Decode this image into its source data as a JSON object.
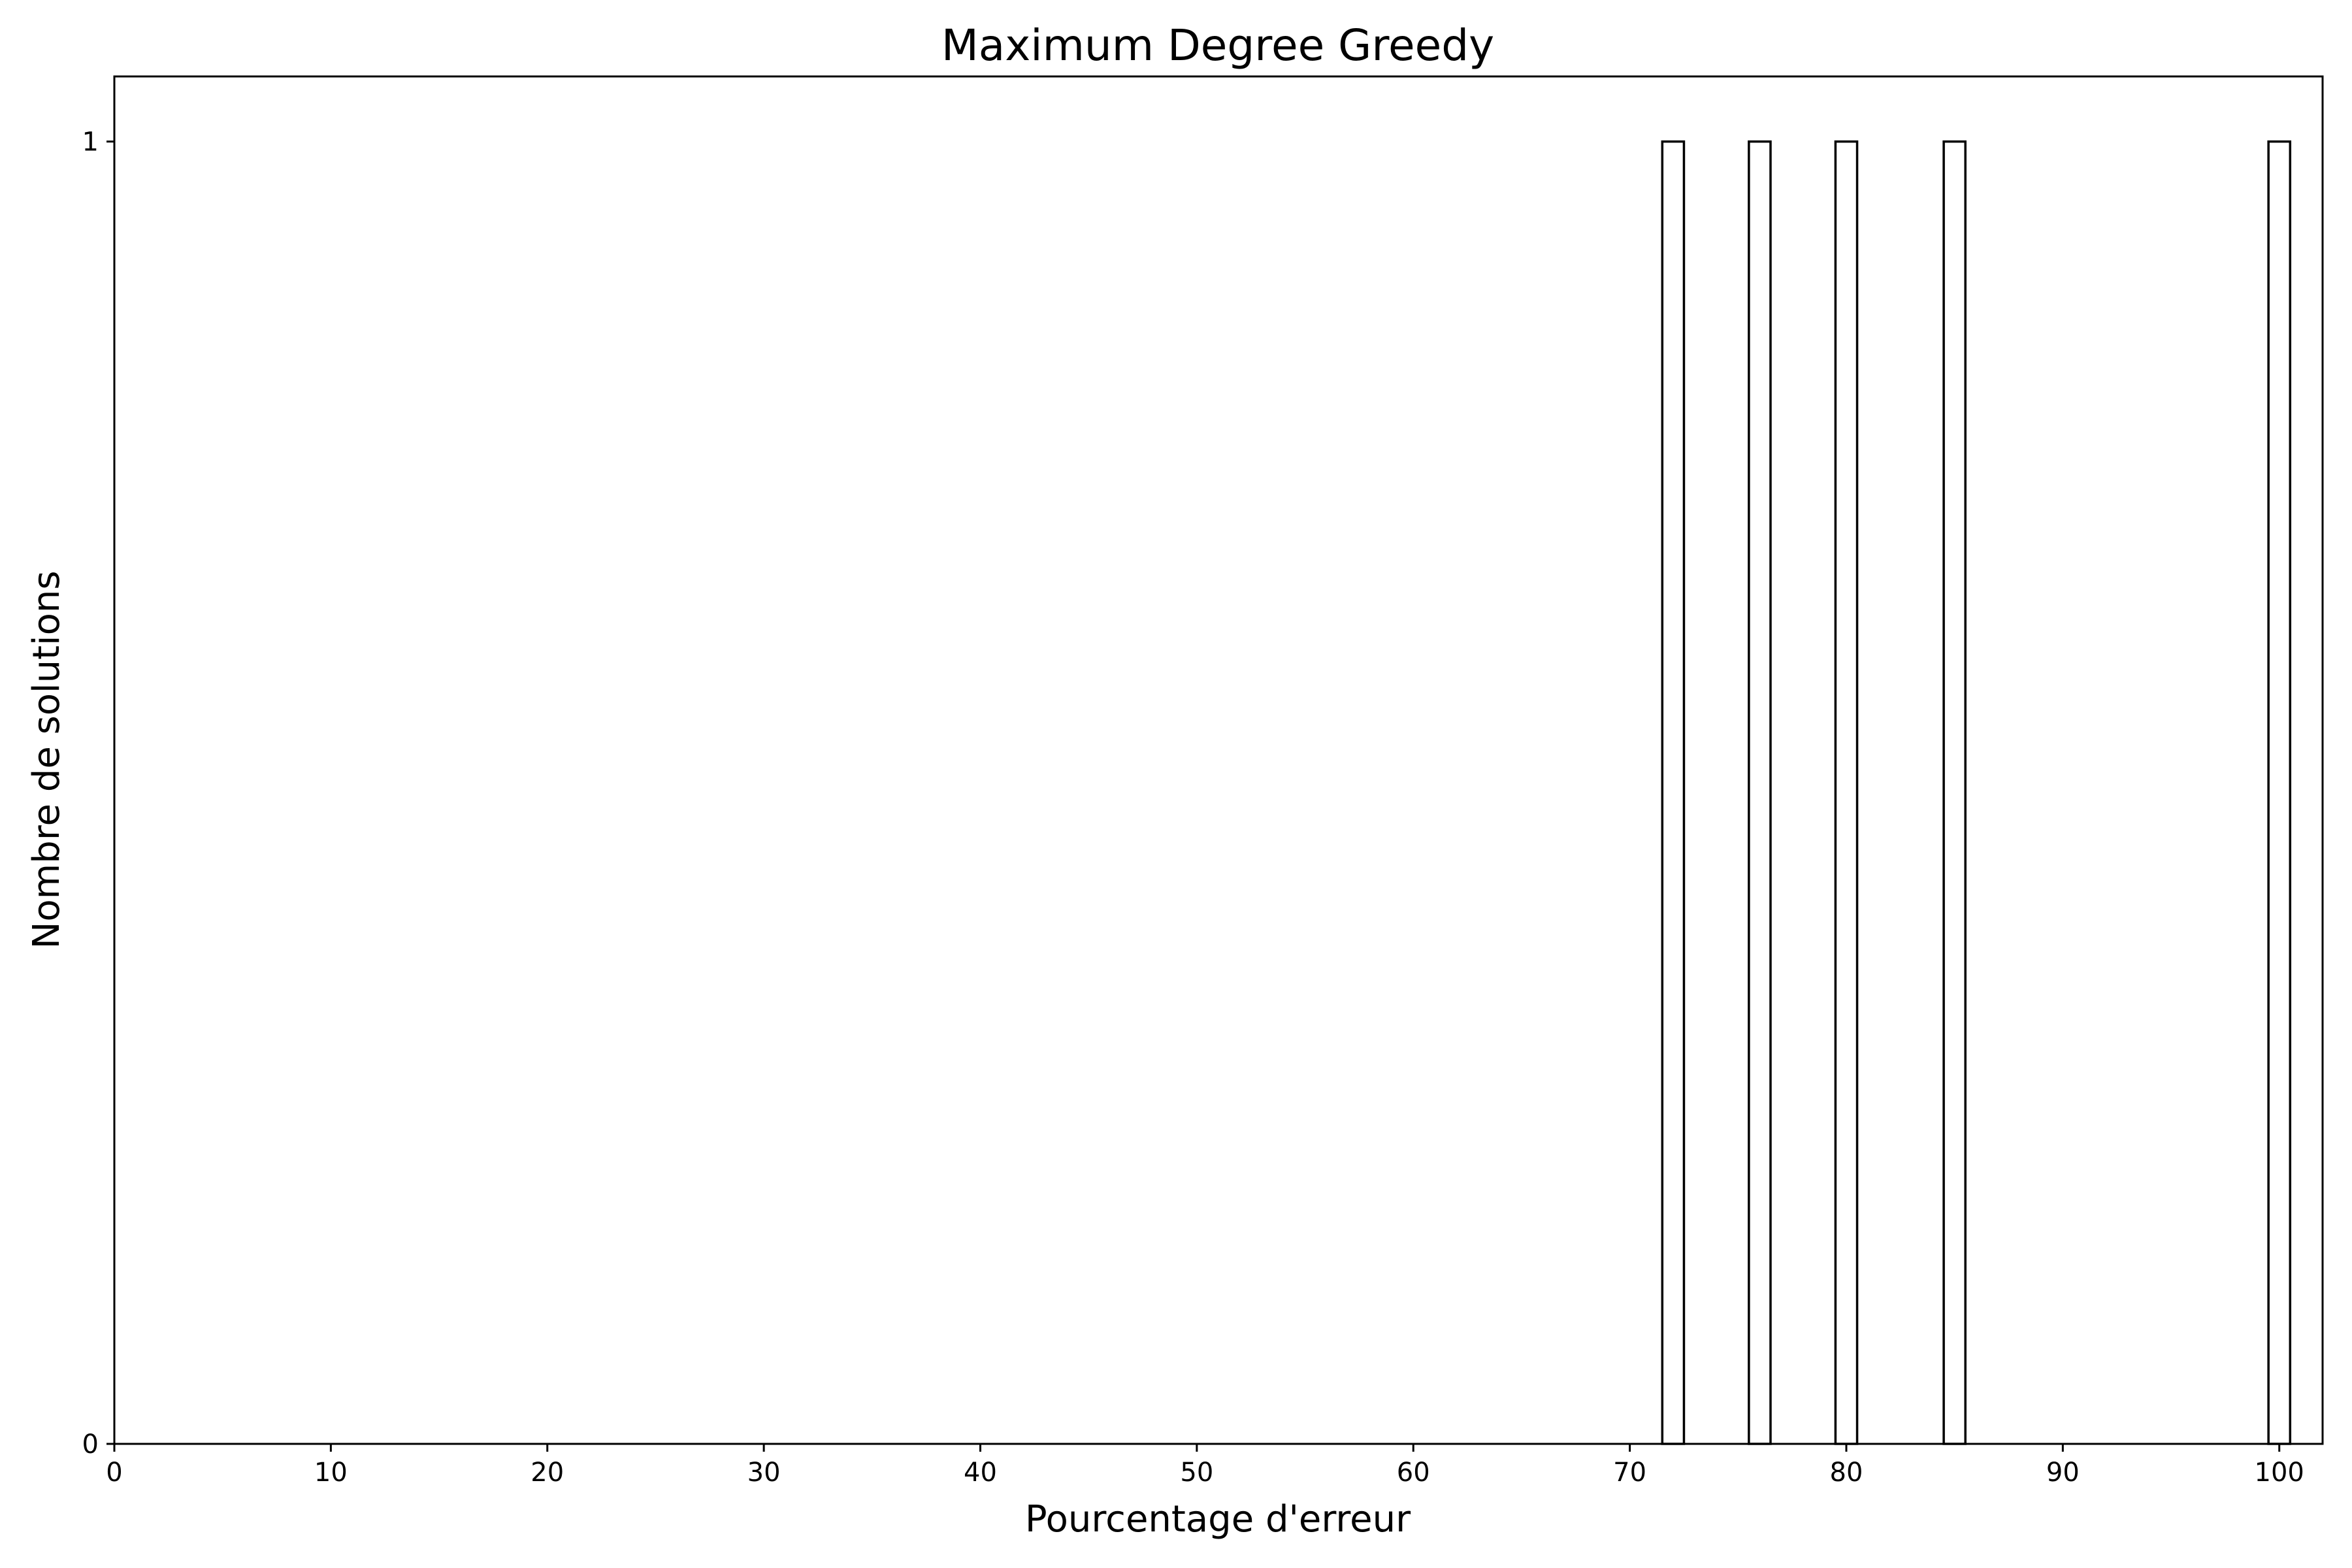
{
  "chart_data": {
    "type": "bar",
    "title": "Maximum Degree Greedy",
    "xlabel": "Pourcentage d'erreur",
    "ylabel": "Nombre de solutions",
    "xlim": [
      0,
      102
    ],
    "ylim": [
      0,
      1.05
    ],
    "xticks": [
      0,
      10,
      20,
      30,
      40,
      50,
      60,
      70,
      80,
      90,
      100
    ],
    "yticks": [
      0,
      1
    ],
    "bin_width": 1,
    "bars": [
      {
        "x": 72,
        "value": 1
      },
      {
        "x": 76,
        "value": 1
      },
      {
        "x": 80,
        "value": 1
      },
      {
        "x": 85,
        "value": 1
      },
      {
        "x": 100,
        "value": 1
      }
    ],
    "grid": false,
    "bar_fill": "#ffffff",
    "bar_edge": "#000000"
  }
}
